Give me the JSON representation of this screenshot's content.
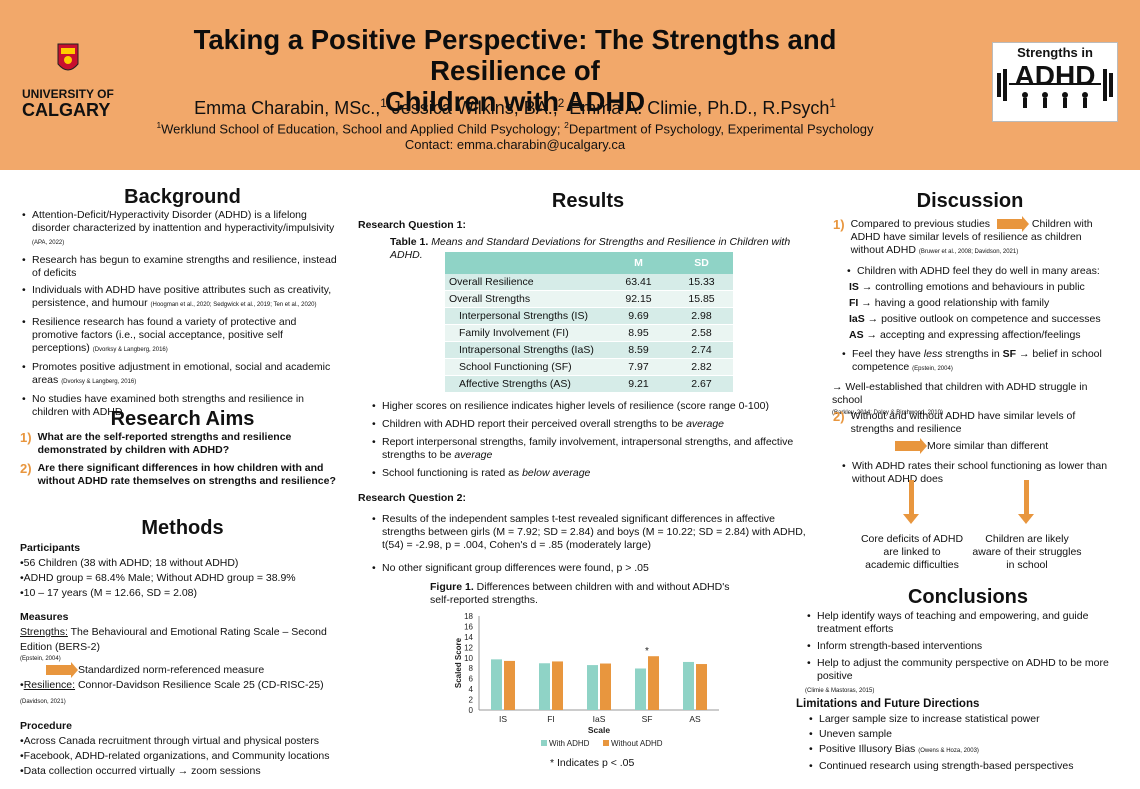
{
  "header": {
    "title_line1": "Taking a Positive Perspective: The Strengths and Resilience of",
    "title_line2": "Children with ADHD",
    "author1": "Emma Charabin, MSc.,",
    "author1_sup": "1",
    "author2": " Jessica Wilkins, BA.,",
    "author2_sup": "2",
    "author3": " Emma A. Climie, Ph.D., R.Psych",
    "author3_sup": "1",
    "affil1_sup": "1",
    "affil1": "Werklund School of Education, School and Applied Child Psychology; ",
    "affil2_sup": "2",
    "affil2": "Department of Psychology, Experimental Psychology",
    "contact": "Contact: emma.charabin@ucalgary.ca",
    "logo_left_line1": "UNIVERSITY OF",
    "logo_left_line2": "CALGARY",
    "logo_right_top": "Strengths in",
    "logo_right_big": "ADHD"
  },
  "background": {
    "title": "Background",
    "items": [
      {
        "text": "Attention-Deficit/Hyperactivity Disorder (ADHD) is a lifelong disorder characterized by inattention and hyperactivity/impulsivity",
        "cite": "(APA, 2022)"
      },
      {
        "text": "Research has begun to examine strengths and resilience, instead of deficits",
        "cite": ""
      },
      {
        "text": "Individuals with ADHD have positive attributes such as creativity, persistence, and humour",
        "cite": "(Hoogman et al., 2020; Sedgwick et al., 2019; Ten et al., 2020)"
      },
      {
        "text": "Resilience research has found a variety of protective and promotive factors (i.e., social acceptance, positive self perceptions)",
        "cite": "(Dvorksy & Langberg, 2016)"
      },
      {
        "text": "Promotes positive adjustment in emotional, social and academic areas",
        "cite": "(Dvorksy & Langberg, 2016)"
      },
      {
        "text": "No studies have examined both strengths and resilience in children with ADHD",
        "cite": ""
      }
    ]
  },
  "aims": {
    "title": "Research Aims",
    "q1_num": "1)",
    "q1": "What are the self-reported strengths and resilience demonstrated by children with ADHD?",
    "q2_num": "2)",
    "q2": "Are there significant differences in how children with and without ADHD rate themselves on strengths and resilience?"
  },
  "methods": {
    "title": "Methods",
    "participants_h": "Participants",
    "participants": [
      "•56 Children (38 with ADHD; 18 without ADHD)",
      "•ADHD group = 68.4% Male; Without ADHD group = 38.9%",
      "•10 – 17 years (M = 12.66, SD = 2.08)"
    ],
    "measures_h": "Measures",
    "strengths_label": "Strengths:",
    "strengths_text": " The Behavioural and Emotional Rating Scale – Second Edition (BERS-2)",
    "strengths_cite": "(Epstein, 2004)",
    "standardized": "Standardized norm-referenced measure",
    "resilience_label": "Resilience:",
    "resilience_text": " Connor-Davidson Resilience Scale 25 (CD-RISC-25)",
    "resilience_cite": "(Davidson, 2021)",
    "procedure_h": "Procedure",
    "procedure": [
      "•Across Canada recruitment through virtual and physical posters",
      "•Facebook, ADHD-related organizations, and Community locations",
      "•Data collection occurred virtually → zoom sessions"
    ]
  },
  "results": {
    "title": "Results",
    "rq1": "Research Question 1:",
    "table_caption_bold": "Table 1.",
    "table_caption": " Means and Standard Deviations for Strengths and Resilience in Children with ADHD.",
    "table_headers": [
      "",
      "M",
      "SD"
    ],
    "table_rows": [
      {
        "label": "Overall Resilience",
        "m": "63.41",
        "sd": "15.33",
        "indent": false
      },
      {
        "label": "Overall Strengths",
        "m": "92.15",
        "sd": "15.85",
        "indent": false
      },
      {
        "label": "Interpersonal Strengths (IS)",
        "m": "9.69",
        "sd": "2.98",
        "indent": true
      },
      {
        "label": "Family Involvement (FI)",
        "m": "8.95",
        "sd": "2.58",
        "indent": true
      },
      {
        "label": "Intrapersonal Strengths (IaS)",
        "m": "8.59",
        "sd": "2.74",
        "indent": true
      },
      {
        "label": "School Functioning (SF)",
        "m": "7.97",
        "sd": "2.82",
        "indent": true
      },
      {
        "label": "Affective Strengths (AS)",
        "m": "9.21",
        "sd": "2.67",
        "indent": true
      }
    ],
    "bullets1": [
      "Higher scores on resilience indicates higher levels of resilience (score range 0-100)",
      "Children with ADHD report their perceived overall strengths to be average",
      "Report interpersonal strengths, family involvement, intrapersonal strengths, and affective strengths to be average",
      "School functioning is rated as below average"
    ],
    "rq2": "Research Question 2:",
    "rq2_result": "Results of the independent samples t-test revealed significant differences in affective strengths between girls (M = 7.92; SD = 2.84) and boys (M = 10.22; SD = 2.84) with ADHD, t(54) = -2.98, p = .004, Cohen's d = .85 (moderately large)",
    "rq2_none": "No other significant group differences were found, p > .05",
    "fig_caption_bold": "Figure 1.",
    "fig_caption": " Differences between children with and without ADHD's self-reported strengths.",
    "footnote": "* Indicates p < .05"
  },
  "chart_data": {
    "type": "bar",
    "categories": [
      "IS",
      "FI",
      "IaS",
      "SF",
      "AS"
    ],
    "series": [
      {
        "name": "With ADHD",
        "values": [
          9.7,
          8.95,
          8.6,
          7.95,
          9.2
        ],
        "color": "#8fd3c6"
      },
      {
        "name": "Without ADHD",
        "values": [
          9.4,
          9.3,
          8.9,
          10.3,
          8.8
        ],
        "color": "#e8963e"
      }
    ],
    "xlabel": "Scale",
    "ylabel": "Scaled Score",
    "ylim": [
      0,
      18
    ],
    "yticks": [
      "0",
      "2",
      "4",
      "6",
      "8",
      "10",
      "12",
      "14",
      "16",
      "18"
    ],
    "annotation": "*",
    "annotation_category": "SF"
  },
  "discussion": {
    "title": "Discussion",
    "p1_num": "1)",
    "p1_a": "Compared to previous studies",
    "p1_b": "Children with ADHD have similar levels of resilience as children without ADHD",
    "p1_cite": "(Bruwer et al., 2008; Davidson, 2021)",
    "well_intro": "Children with ADHD feel they do well in many areas:",
    "areas": [
      {
        "code": "IS",
        "text": "controlling emotions and behaviours in public"
      },
      {
        "code": "FI",
        "text": "having a good relationship with family"
      },
      {
        "code": "IaS",
        "text": "positive outlook on competence and successes"
      },
      {
        "code": "AS",
        "text": "accepting and expressing affection/feelings"
      }
    ],
    "less_a": "Feel they have ",
    "less_em": "less",
    "less_b": " strengths in ",
    "less_sf": "SF",
    "less_c": " belief in school competence",
    "less_cite": "(Epstein, 2004)",
    "struggle": "Well-established that children with ADHD struggle in school",
    "struggle_cite": "(Barkley, 2014; Daley & Birchwood, 2010)",
    "p2_num": "2)",
    "p2": "Without and without ADHD have similar levels of strengths and resilience",
    "more_similar": "More similar than different",
    "school_rate": "With ADHD rates their school functioning as lower than without ADHD does",
    "core": "Core deficits of ADHD are linked to academic difficulties",
    "aware": "Children are likely aware of their struggles in school"
  },
  "conclusions": {
    "title": "Conclusions",
    "items": [
      "Help identify ways of teaching and empowering, and guide treatment efforts",
      "Inform strength-based interventions",
      "Help to adjust the community perspective on ADHD to be more positive"
    ],
    "cite": "(Climie & Mastoras, 2015)",
    "limits_title": "Limitations and Future Directions",
    "limits": [
      "Larger sample size to increase statistical power",
      "Uneven sample",
      "Positive Illusory Bias",
      "Continued research using strength-based perspectives"
    ],
    "bias_cite": "(Owens & Hoza, 2003)"
  },
  "colors": {
    "header": "#f2a86a",
    "accent": "#e8963e",
    "teal": "#8fd3c6"
  }
}
